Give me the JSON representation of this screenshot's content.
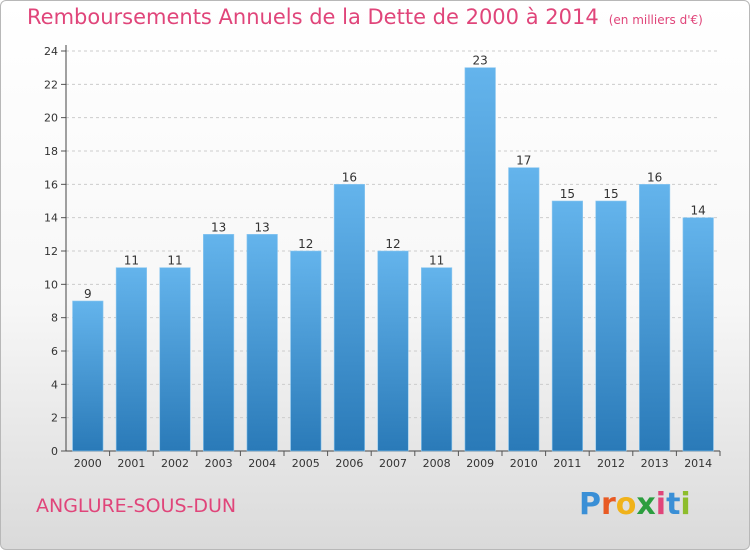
{
  "header": {
    "title": "Remboursements Annuels de la Dette de 2000 à 2014",
    "unit": "(en milliers d'€)"
  },
  "footer": {
    "commune": "ANGLURE-SOUS-DUN",
    "logo": "Proxiti",
    "logo_colors": [
      "#3a8fd6",
      "#e85a23",
      "#f0b21a",
      "#2c9e3f",
      "#e0457a",
      "#3a8fd6",
      "#8dbd2c"
    ]
  },
  "colors": {
    "bar_light": "#64b4ec",
    "bar_dark": "#2a7ab8",
    "accent": "#e0457a",
    "grid": "#cccccc"
  },
  "chart_data": {
    "type": "bar",
    "title": "Remboursements Annuels de la Dette de 2000 à 2014",
    "categories": [
      "2000",
      "2001",
      "2002",
      "2003",
      "2004",
      "2005",
      "2006",
      "2007",
      "2008",
      "2009",
      "2010",
      "2011",
      "2012",
      "2013",
      "2014"
    ],
    "values": [
      9,
      11,
      11,
      13,
      13,
      12,
      16,
      12,
      11,
      23,
      17,
      15,
      15,
      16,
      14
    ],
    "ylim": [
      0,
      24
    ],
    "yticks": [
      0,
      2,
      4,
      6,
      8,
      10,
      12,
      14,
      16,
      18,
      20,
      22,
      24
    ],
    "grid": "horizontal",
    "xlabel": "",
    "ylabel": ""
  }
}
